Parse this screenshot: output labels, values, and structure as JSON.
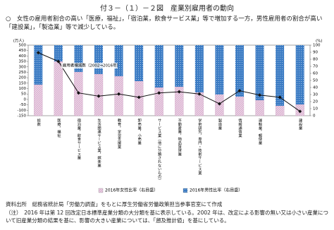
{
  "header": {
    "title": "付３－（１）－２図　産業別雇用者の動向",
    "lead": "○　女性の雇用者割合の高い「医療，福祉」，「宿泊業，飲食サービス業」等で増加する一方，男性雇用者の割合が高い「建設業」，「製造業」等で減少している。"
  },
  "chart_data": {
    "type": "bar-line",
    "categories": [
      "総数",
      "医療，福祉",
      "宿泊業，飲食サービス業",
      "生活関連サービス業，娯楽業",
      "教育，学習支援業",
      "卸売業，小売業",
      "サービス業（他に分類されないもの）",
      "不動産業，物品賃貸業",
      "学術研究，専門・技術サービス業",
      "製造業",
      "情報通信業",
      "運輸業，郵便業",
      null,
      "建設業"
    ],
    "series": [
      {
        "name": "2016年女性比率（右目盛）",
        "color": "#e6c6df",
        "axis": "y2",
        "values": [
          44,
          77,
          62,
          59,
          56,
          49,
          40,
          41,
          33,
          30,
          27,
          22,
          14,
          16
        ]
      },
      {
        "name": "2016年男性比率（右目盛）",
        "color": "#3c7cc4",
        "axis": "y2",
        "values": [
          56,
          23,
          38,
          41,
          44,
          51,
          60,
          59,
          67,
          70,
          73,
          78,
          86,
          84
        ]
      },
      {
        "name": "雇用者増減数（2002→2016年）",
        "color": "#111111",
        "values": [
          430,
          350,
          60,
          30,
          50,
          20,
          60,
          70,
          50,
          -40,
          80,
          40,
          20,
          -110
        ]
      }
    ],
    "ylim": [
      -150,
      500
    ],
    "yticks": [
      -150,
      -100,
      -50,
      0,
      50,
      100,
      150,
      200,
      250,
      300,
      350,
      400,
      450,
      500
    ],
    "y2lim": [
      0,
      100
    ],
    "y2ticks": [
      0,
      10,
      20,
      30,
      40,
      50,
      60,
      70,
      80,
      90,
      100
    ],
    "y_unit": "(万人)",
    "y2_unit": "(%)"
  },
  "notes": {
    "source": "資料出所　総務省統計局「労働力調査」をもとに厚生労働省労働政策担当参事官室にて作成",
    "note": "（注）　2016 年は第 12 回改定日本標準産業分類の大分類を基に表示している。2002 年は、改定による影響の無い又は小さい産業について旧産業分類の結果を基に、影響の大きい産業については、「遡及推計値」を基にしている。"
  }
}
